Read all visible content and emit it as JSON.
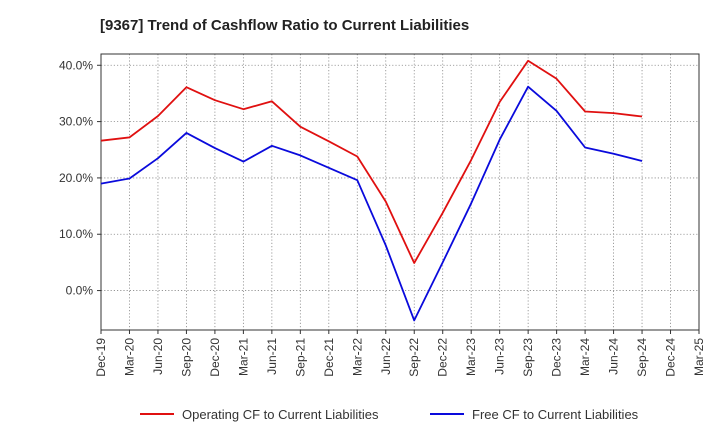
{
  "chart_data": {
    "type": "line",
    "title": "[9367]  Trend of Cashflow Ratio to Current Liabilities",
    "xlabel": "",
    "ylabel": "",
    "categories": [
      "Dec-19",
      "Mar-20",
      "Jun-20",
      "Sep-20",
      "Dec-20",
      "Mar-21",
      "Jun-21",
      "Sep-21",
      "Dec-21",
      "Mar-22",
      "Jun-22",
      "Sep-22",
      "Dec-22",
      "Mar-23",
      "Jun-23",
      "Sep-23",
      "Dec-23",
      "Mar-24",
      "Jun-24",
      "Sep-24",
      "Dec-24",
      "Mar-25"
    ],
    "ylim": [
      -7,
      42
    ],
    "yticks": [
      0,
      10,
      20,
      30,
      40
    ],
    "ytick_labels": [
      "0.0%",
      "10.0%",
      "20.0%",
      "30.0%",
      "40.0%"
    ],
    "grid": true,
    "legend_position": "bottom",
    "series": [
      {
        "name": "Operating CF to Current Liabilities",
        "color": "#e01010",
        "values": [
          26.6,
          27.2,
          31.0,
          36.1,
          33.8,
          32.2,
          33.6,
          29.1,
          26.5,
          23.8,
          15.8,
          4.9,
          13.8,
          23.2,
          33.5,
          40.8,
          37.6,
          31.8,
          31.5,
          30.9,
          null,
          null
        ]
      },
      {
        "name": "Free CF to Current Liabilities",
        "color": "#0a0adc",
        "values": [
          19.0,
          19.9,
          23.5,
          28.0,
          25.3,
          22.9,
          25.7,
          24.0,
          21.8,
          19.6,
          8.0,
          -5.3,
          5.0,
          15.5,
          26.8,
          36.2,
          31.9,
          25.4,
          24.3,
          23.0,
          null,
          null
        ]
      }
    ]
  }
}
